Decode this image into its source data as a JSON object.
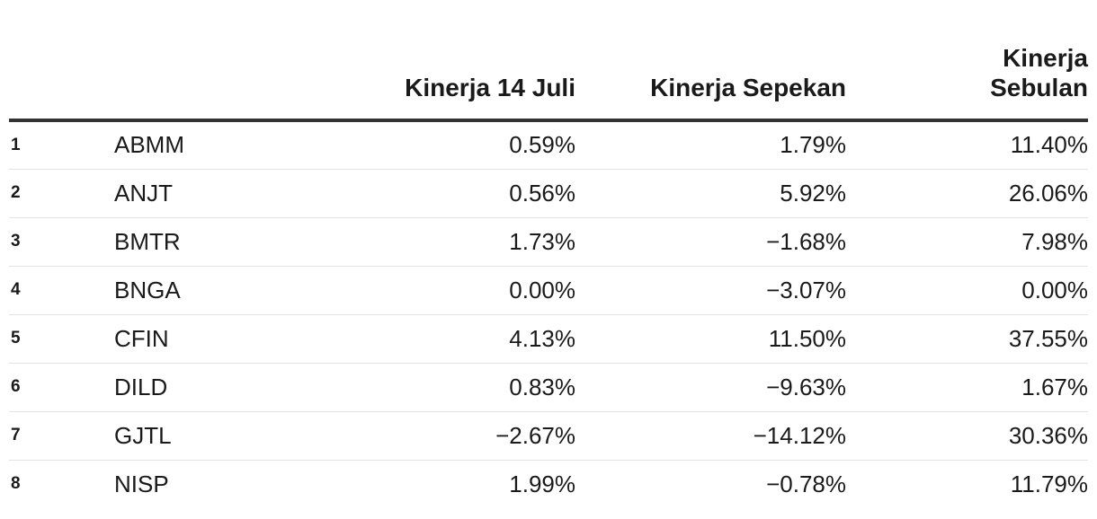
{
  "chart_data": {
    "type": "table",
    "columns": [
      "",
      "",
      "Kinerja 14 Juli",
      "Kinerja Sepekan",
      "Kinerja Sebulan"
    ],
    "rows": [
      {
        "rank": "1",
        "code": "ABMM",
        "d14": "0.59%",
        "week": "1.79%",
        "month": "11.40%"
      },
      {
        "rank": "2",
        "code": "ANJT",
        "d14": "0.56%",
        "week": "5.92%",
        "month": "26.06%"
      },
      {
        "rank": "3",
        "code": "BMTR",
        "d14": "1.73%",
        "week": "−1.68%",
        "month": "7.98%"
      },
      {
        "rank": "4",
        "code": "BNGA",
        "d14": "0.00%",
        "week": "−3.07%",
        "month": "0.00%"
      },
      {
        "rank": "5",
        "code": "CFIN",
        "d14": "4.13%",
        "week": "11.50%",
        "month": "37.55%"
      },
      {
        "rank": "6",
        "code": "DILD",
        "d14": "0.83%",
        "week": "−9.63%",
        "month": "1.67%"
      },
      {
        "rank": "7",
        "code": "GJTL",
        "d14": "−2.67%",
        "week": "−14.12%",
        "month": "30.36%"
      },
      {
        "rank": "8",
        "code": "NISP",
        "d14": "1.99%",
        "week": "−0.78%",
        "month": "11.79%"
      }
    ]
  }
}
